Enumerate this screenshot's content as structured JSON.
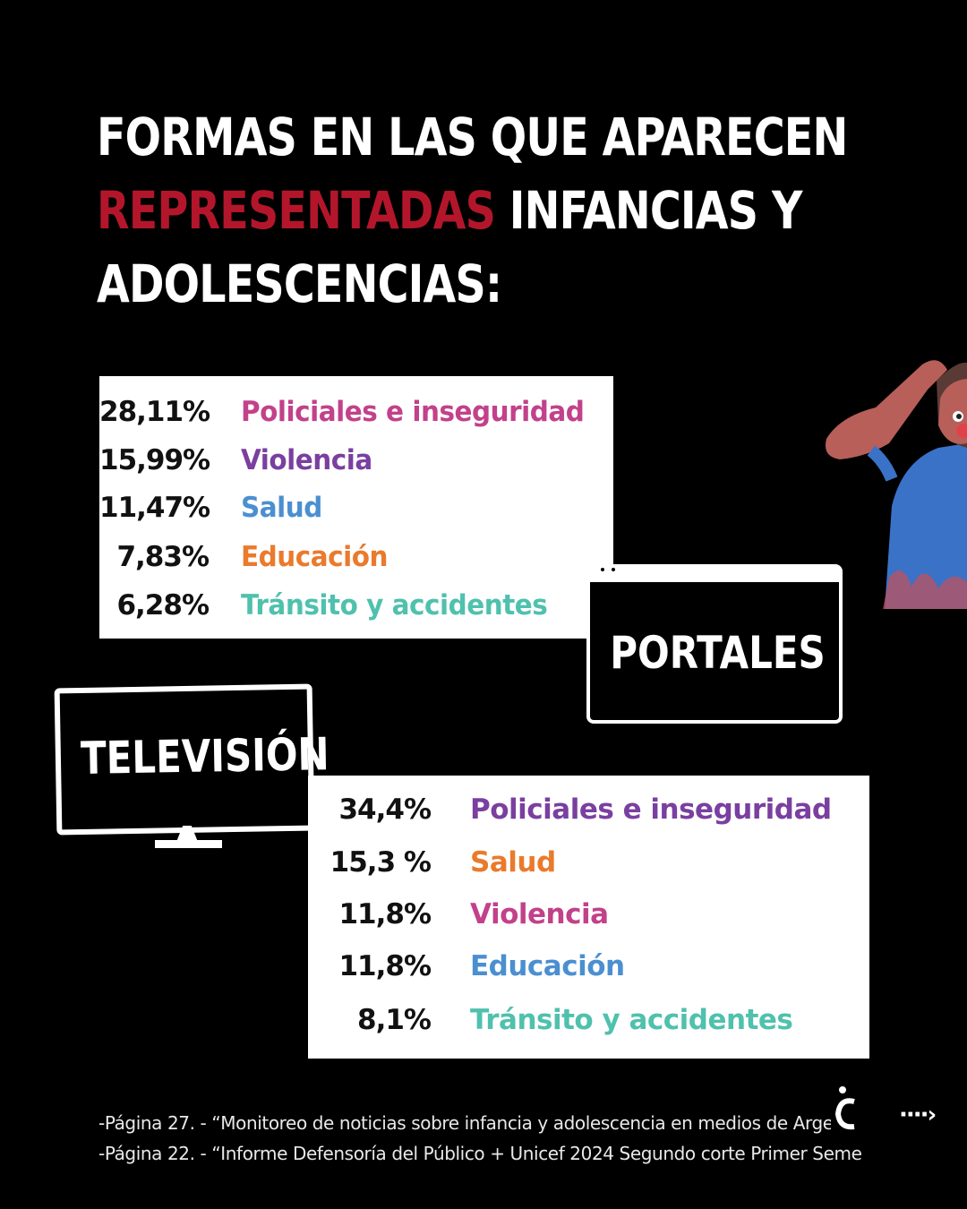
{
  "title": {
    "line1": "FORMAS EN LAS QUE APARECEN",
    "highlight": "REPRESENTADAS",
    "line2_rest": " INFANCIAS Y",
    "line3": "ADOLESCENCIAS:"
  },
  "portales": {
    "label": "PORTALES",
    "rows": [
      {
        "pct": "28,11%",
        "category": "Policiales e inseguridad",
        "color": "#c2418a"
      },
      {
        "pct": "15,99%",
        "category": "Violencia",
        "color": "#7a3fa0"
      },
      {
        "pct": "11,47%",
        "category": "Salud",
        "color": "#4b8fd1"
      },
      {
        "pct": "7,83%",
        "category": "Educación",
        "color": "#ea7a2c"
      },
      {
        "pct": "6,28%",
        "category": "Tránsito y accidentes",
        "color": "#4fc1ad"
      }
    ]
  },
  "television": {
    "label": "TELEVISIÓN",
    "rows": [
      {
        "pct": "34,4%",
        "category": "Policiales e inseguridad",
        "color": "#7a3fa0"
      },
      {
        "pct": "15,3 %",
        "category": "Salud",
        "color": "#ea7a2c"
      },
      {
        "pct": "11,8%",
        "category": "Violencia",
        "color": "#c2418a"
      },
      {
        "pct": "11,8%",
        "category": "Educación",
        "color": "#4b8fd1"
      },
      {
        "pct": "8,1%",
        "category": "Tránsito y accidentes",
        "color": "#4fc1ad"
      }
    ]
  },
  "sources": [
    "-Página 27. - “Monitoreo de noticias sobre infancia y adolescencia en medios de Arge",
    "-Página 22. - “Informe Defensoría del Público + Unicef 2024 Segundo corte Primer Seme"
  ],
  "next_icon": "dotted-arrow-right-icon",
  "accent_color": "#b3162b"
}
